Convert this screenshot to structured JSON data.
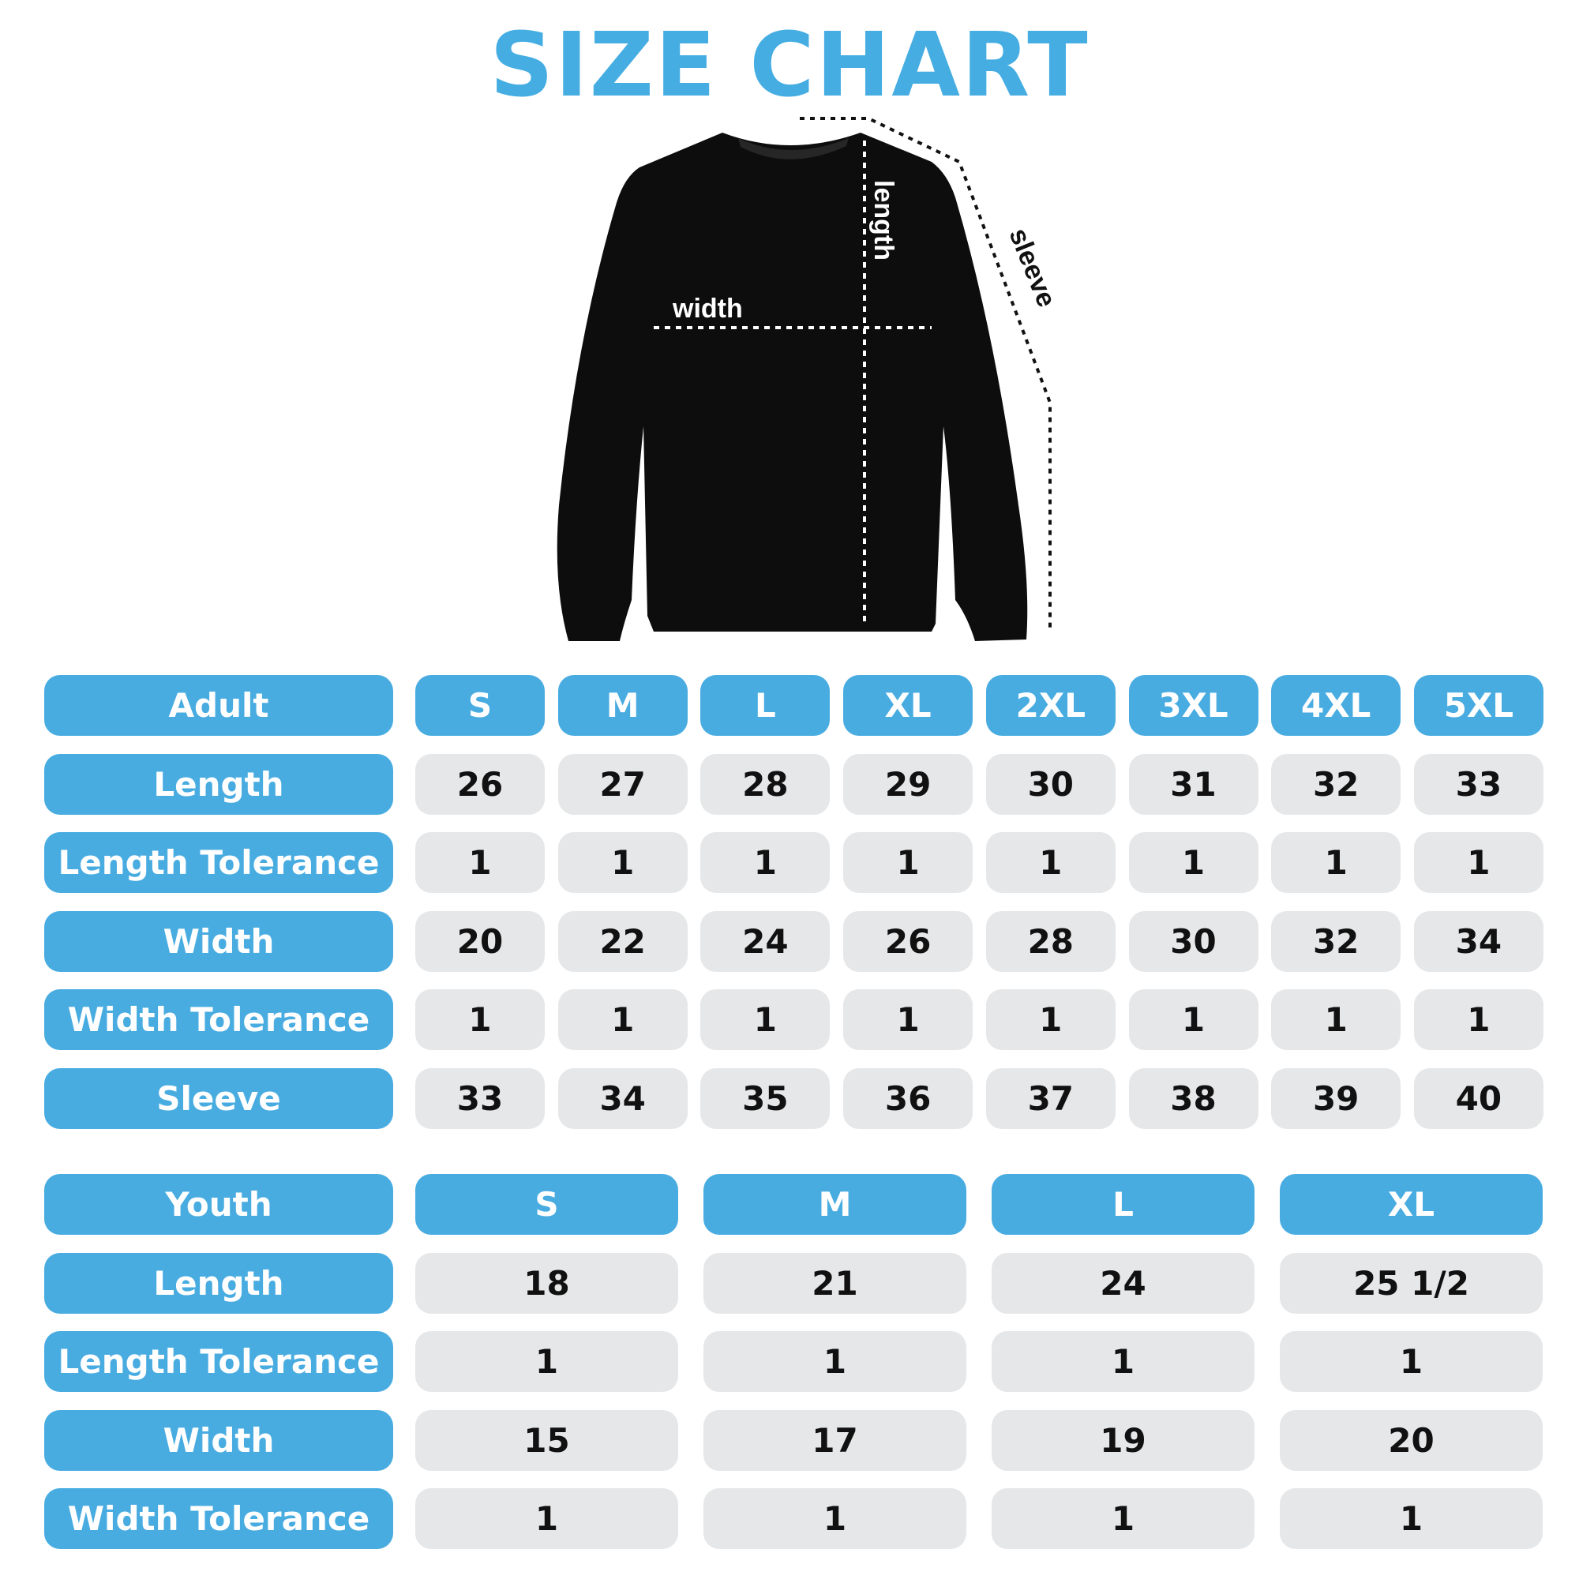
{
  "title": "SIZE CHART",
  "colors": {
    "accent": "#49ace1",
    "cell": "#e6e7e9",
    "text": "#111111"
  },
  "diagram": {
    "width_label": "width",
    "length_label": "length",
    "sleeve_label": "sleeve"
  },
  "adult": {
    "header": "Adult",
    "sizes": [
      "S",
      "M",
      "L",
      "XL",
      "2XL",
      "3XL",
      "4XL",
      "5XL"
    ],
    "rows": [
      {
        "label": "Length",
        "values": [
          "26",
          "27",
          "28",
          "29",
          "30",
          "31",
          "32",
          "33"
        ]
      },
      {
        "label": "Length Tolerance",
        "values": [
          "1",
          "1",
          "1",
          "1",
          "1",
          "1",
          "1",
          "1"
        ]
      },
      {
        "label": "Width",
        "values": [
          "20",
          "22",
          "24",
          "26",
          "28",
          "30",
          "32",
          "34"
        ]
      },
      {
        "label": "Width Tolerance",
        "values": [
          "1",
          "1",
          "1",
          "1",
          "1",
          "1",
          "1",
          "1"
        ]
      },
      {
        "label": "Sleeve",
        "values": [
          "33",
          "34",
          "35",
          "36",
          "37",
          "38",
          "39",
          "40"
        ]
      }
    ]
  },
  "youth": {
    "header": "Youth",
    "sizes": [
      "S",
      "M",
      "L",
      "XL"
    ],
    "rows": [
      {
        "label": "Length",
        "values": [
          "18",
          "21",
          "24",
          "25 1/2"
        ]
      },
      {
        "label": "Length Tolerance",
        "values": [
          "1",
          "1",
          "1",
          "1"
        ]
      },
      {
        "label": "Width",
        "values": [
          "15",
          "17",
          "19",
          "20"
        ]
      },
      {
        "label": "Width Tolerance",
        "values": [
          "1",
          "1",
          "1",
          "1"
        ]
      }
    ]
  }
}
